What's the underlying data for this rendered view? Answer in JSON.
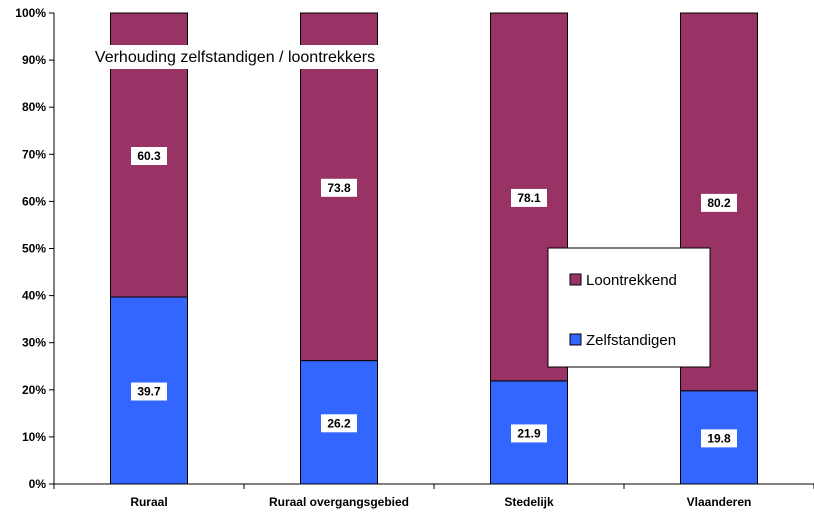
{
  "chart_data": {
    "type": "bar",
    "stacked": true,
    "percent_axis": true,
    "title": "Verhouding zelfstandigen / loontrekkers",
    "categories": [
      "Ruraal",
      "Ruraal overgangsgebied",
      "Stedelijk",
      "Vlaanderen"
    ],
    "series": [
      {
        "name": "Zelfstandigen",
        "values": [
          39.7,
          26.2,
          21.9,
          19.8
        ],
        "color": "#3366ff"
      },
      {
        "name": "Loontrekkend",
        "values": [
          60.3,
          73.8,
          78.1,
          80.2
        ],
        "color": "#993366"
      }
    ],
    "y_ticks": [
      "0%",
      "10%",
      "20%",
      "30%",
      "40%",
      "50%",
      "60%",
      "70%",
      "80%",
      "90%",
      "100%"
    ],
    "ylim": [
      0,
      100
    ],
    "grid": false,
    "legend_placement": "center-right"
  }
}
